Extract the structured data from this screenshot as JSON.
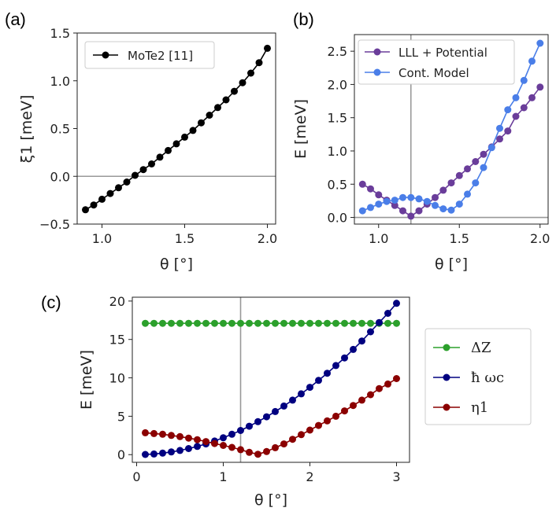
{
  "chart_data": [
    {
      "panel_label": "(a)",
      "type": "line",
      "xlabel": "θ [°]",
      "ylabel": "ξ1 [meV]",
      "xlim": [
        0.85,
        2.05
      ],
      "ylim": [
        -0.5,
        1.5
      ],
      "xticks": [
        1.0,
        1.5,
        2.0
      ],
      "yticks": [
        -0.5,
        0.0,
        0.5,
        1.0,
        1.5
      ],
      "xtick_labels": [
        "1.0",
        "1.5",
        "2.0"
      ],
      "ytick_labels": [
        "−0.5",
        "0.0",
        "0.5",
        "1.0",
        "1.5"
      ],
      "hlines": [
        0
      ],
      "vlines": [],
      "legend_position": "top-left",
      "series": [
        {
          "name": "MoTe2 [11]",
          "color": "#000000",
          "x": [
            0.9,
            0.95,
            1.0,
            1.05,
            1.1,
            1.15,
            1.2,
            1.25,
            1.3,
            1.35,
            1.4,
            1.45,
            1.5,
            1.55,
            1.6,
            1.65,
            1.7,
            1.75,
            1.8,
            1.85,
            1.9,
            1.95,
            2.0
          ],
          "y": [
            -0.35,
            -0.3,
            -0.24,
            -0.18,
            -0.12,
            -0.06,
            0.01,
            0.07,
            0.13,
            0.2,
            0.27,
            0.34,
            0.41,
            0.48,
            0.56,
            0.64,
            0.72,
            0.8,
            0.89,
            0.98,
            1.08,
            1.19,
            1.34
          ]
        }
      ]
    },
    {
      "panel_label": "(b)",
      "type": "line",
      "xlabel": "θ [°]",
      "ylabel": "E [meV]",
      "xlim": [
        0.85,
        2.05
      ],
      "ylim": [
        -0.1,
        2.75
      ],
      "xticks": [
        1.0,
        1.5,
        2.0
      ],
      "yticks": [
        0.0,
        0.5,
        1.0,
        1.5,
        2.0,
        2.5
      ],
      "xtick_labels": [
        "1.0",
        "1.5",
        "2.0"
      ],
      "ytick_labels": [
        "0.0",
        "0.5",
        "1.0",
        "1.5",
        "2.0",
        "2.5"
      ],
      "hlines": [
        0
      ],
      "vlines": [
        1.2
      ],
      "legend_position": "top-left",
      "series": [
        {
          "name": "LLL + Potential",
          "color": "#6a3d9a",
          "x": [
            0.9,
            0.95,
            1.0,
            1.05,
            1.1,
            1.15,
            1.2,
            1.25,
            1.3,
            1.35,
            1.4,
            1.45,
            1.5,
            1.55,
            1.6,
            1.65,
            1.7,
            1.75,
            1.8,
            1.85,
            1.9,
            1.95,
            2.0
          ],
          "y": [
            0.5,
            0.43,
            0.34,
            0.26,
            0.18,
            0.1,
            0.02,
            0.1,
            0.2,
            0.3,
            0.41,
            0.52,
            0.63,
            0.73,
            0.84,
            0.95,
            1.06,
            1.18,
            1.3,
            1.52,
            1.65,
            1.8,
            1.96
          ]
        },
        {
          "name": "Cont. Model",
          "color": "#4a7ee8",
          "x": [
            0.9,
            0.95,
            1.0,
            1.05,
            1.1,
            1.15,
            1.2,
            1.25,
            1.3,
            1.35,
            1.4,
            1.45,
            1.5,
            1.55,
            1.6,
            1.65,
            1.7,
            1.75,
            1.8,
            1.85,
            1.9,
            1.95,
            2.0
          ],
          "y": [
            0.1,
            0.15,
            0.2,
            0.24,
            0.26,
            0.3,
            0.3,
            0.28,
            0.24,
            0.18,
            0.13,
            0.11,
            0.2,
            0.35,
            0.52,
            0.75,
            1.05,
            1.34,
            1.62,
            1.8,
            2.06,
            2.35,
            2.62
          ]
        }
      ]
    },
    {
      "panel_label": "(c)",
      "type": "line",
      "xlabel": "θ [°]",
      "ylabel": "E [meV]",
      "xlim": [
        -0.05,
        3.15
      ],
      "ylim": [
        -1,
        20.5
      ],
      "xticks": [
        0,
        1,
        2,
        3
      ],
      "yticks": [
        0,
        5,
        10,
        15,
        20
      ],
      "xtick_labels": [
        "0",
        "1",
        "2",
        "3"
      ],
      "ytick_labels": [
        "0",
        "5",
        "10",
        "15",
        "20"
      ],
      "hlines": [],
      "vlines": [
        1.2
      ],
      "legend_position": "outside-right",
      "series": [
        {
          "name": "ΔZ",
          "color": "#2ca02c",
          "x": [
            0.1,
            0.2,
            0.3,
            0.4,
            0.5,
            0.6,
            0.7,
            0.8,
            0.9,
            1.0,
            1.1,
            1.2,
            1.3,
            1.4,
            1.5,
            1.6,
            1.7,
            1.8,
            1.9,
            2.0,
            2.1,
            2.2,
            2.3,
            2.4,
            2.5,
            2.6,
            2.7,
            2.8,
            2.9,
            3.0
          ],
          "y": [
            17.1,
            17.1,
            17.1,
            17.1,
            17.1,
            17.1,
            17.1,
            17.1,
            17.1,
            17.1,
            17.1,
            17.1,
            17.1,
            17.1,
            17.1,
            17.1,
            17.1,
            17.1,
            17.1,
            17.1,
            17.1,
            17.1,
            17.1,
            17.1,
            17.1,
            17.1,
            17.1,
            17.1,
            17.1,
            17.1
          ]
        },
        {
          "name": "ħ ωc",
          "color": "#000080",
          "x": [
            0.1,
            0.2,
            0.3,
            0.4,
            0.5,
            0.6,
            0.7,
            0.8,
            0.9,
            1.0,
            1.1,
            1.2,
            1.3,
            1.4,
            1.5,
            1.6,
            1.7,
            1.8,
            1.9,
            2.0,
            2.1,
            2.2,
            2.3,
            2.4,
            2.5,
            2.6,
            2.7,
            2.8,
            2.9,
            3.0
          ],
          "y": [
            0.02,
            0.09,
            0.2,
            0.35,
            0.55,
            0.79,
            1.07,
            1.4,
            1.77,
            2.19,
            2.65,
            3.15,
            3.7,
            4.29,
            4.93,
            5.61,
            6.33,
            7.1,
            7.92,
            8.77,
            9.67,
            10.6,
            11.6,
            12.6,
            13.7,
            14.8,
            16.0,
            17.2,
            18.4,
            19.7
          ]
        },
        {
          "name": "η1",
          "color": "#8b0000",
          "x": [
            0.1,
            0.2,
            0.3,
            0.4,
            0.5,
            0.6,
            0.7,
            0.8,
            0.9,
            1.0,
            1.1,
            1.2,
            1.3,
            1.4,
            1.5,
            1.6,
            1.7,
            1.8,
            1.9,
            2.0,
            2.1,
            2.2,
            2.3,
            2.4,
            2.5,
            2.6,
            2.7,
            2.8,
            2.9,
            3.0
          ],
          "y": [
            2.85,
            2.75,
            2.65,
            2.5,
            2.35,
            2.15,
            1.95,
            1.7,
            1.45,
            1.2,
            0.95,
            0.65,
            0.3,
            0.05,
            0.4,
            0.9,
            1.4,
            2.0,
            2.6,
            3.2,
            3.8,
            4.4,
            5.0,
            5.7,
            6.4,
            7.1,
            7.8,
            8.6,
            9.2,
            9.9
          ]
        }
      ]
    }
  ]
}
